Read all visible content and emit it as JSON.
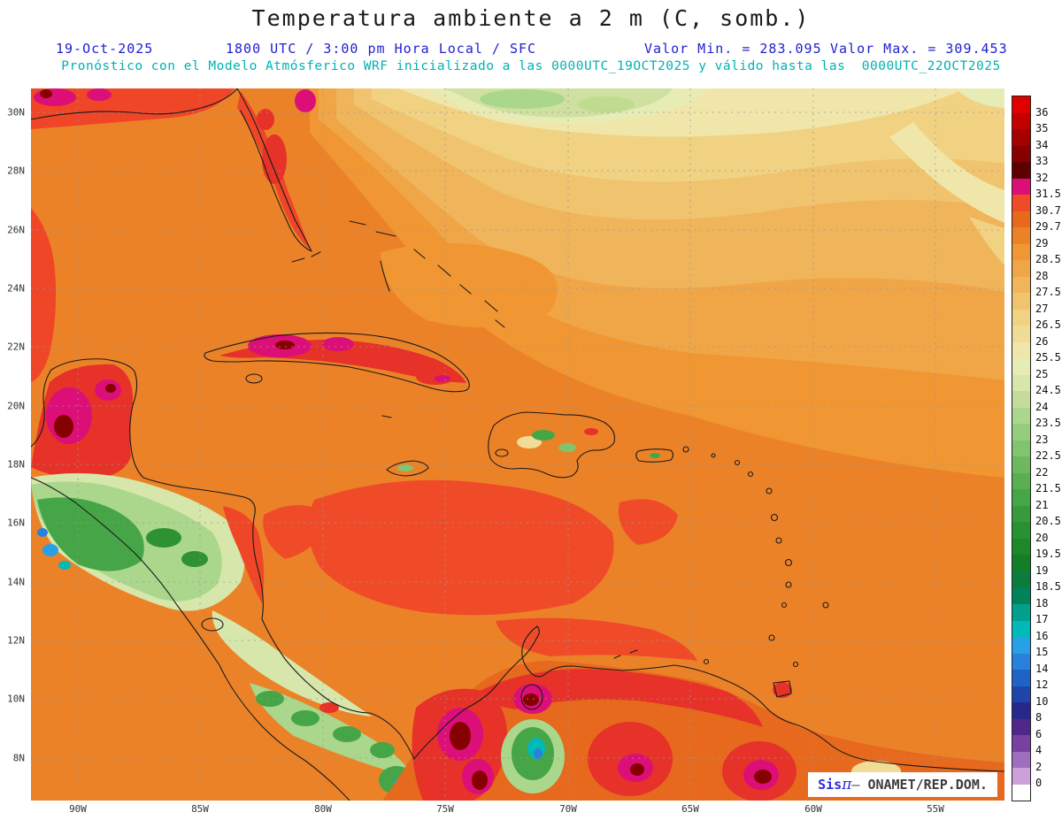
{
  "header": {
    "title": "Temperatura ambiente a 2 m (C, somb.)",
    "date": "19-Oct-2025",
    "run_line": "1800 UTC / 3:00 pm Hora Local / SFC",
    "min_label": "Valor Min. = 283.095",
    "max_label": "Valor Max. = 309.453",
    "forecast_line": "Pronóstico con el Modelo Atmósferico WRF inicializado a las 0000UTC_19OCT2025 y válido hasta las  0000UTC_22OCT2025"
  },
  "watermark": {
    "brand": "Sis",
    "pi": "π",
    "separator": "– ",
    "org": "ONAMET/REP.DOM."
  },
  "axes": {
    "lat_ticks": [
      "30N",
      "28N",
      "26N",
      "24N",
      "22N",
      "20N",
      "18N",
      "16N",
      "14N",
      "12N",
      "10N",
      "8N"
    ],
    "lon_ticks": [
      "90W",
      "85W",
      "80W",
      "75W",
      "70W",
      "65W",
      "60W",
      "55W"
    ]
  },
  "colorbar": {
    "tick_labels": [
      "36",
      "35",
      "34",
      "33",
      "32",
      "31.5",
      "30.7",
      "29.7",
      "29",
      "28.5",
      "28",
      "27.5",
      "27",
      "26.5",
      "26",
      "25.5",
      "25",
      "24.5",
      "24",
      "23.5",
      "23",
      "22.5",
      "22",
      "21.5",
      "21",
      "20.5",
      "20",
      "19.5",
      "19",
      "18.5",
      "18",
      "17",
      "16",
      "15",
      "14",
      "12",
      "10",
      "8",
      "6",
      "4",
      "2",
      "0"
    ],
    "cell_colors": [
      "#e00000",
      "#c30000",
      "#a50000",
      "#870000",
      "#5f0000",
      "#dc0f78",
      "#f04b28",
      "#e6691e",
      "#eb8228",
      "#f09632",
      "#f0a546",
      "#f0b45a",
      "#f0c36e",
      "#f0d282",
      "#f0dc96",
      "#f0e6aa",
      "#e6ecb4",
      "#d7e6aa",
      "#c3dc9b",
      "#aad78c",
      "#96cd7d",
      "#82c36e",
      "#6eb960",
      "#5aaf50",
      "#46a546",
      "#379b3c",
      "#289132",
      "#1e8728",
      "#147d28",
      "#0a7d3c",
      "#00825a",
      "#00a08c",
      "#00b9b9",
      "#28a0e6",
      "#2882dc",
      "#1e64c8",
      "#1e46aa",
      "#28288c",
      "#50288c",
      "#7841a0",
      "#a06ebe",
      "#cda0dc",
      "#ffffff"
    ]
  },
  "chart_data": {
    "type": "heatmap",
    "title": "Temperatura ambiente a 2 m (C, somb.)",
    "variable": "Temperatura ambiente a 2 m",
    "units": "C",
    "date": "19-Oct-2025",
    "valid_time": "1800 UTC / 3:00 pm Hora Local / SFC",
    "model": "WRF",
    "init": "0000UTC_19OCT2025",
    "valid_until": "0000UTC_22OCT2025",
    "value_min": 283.095,
    "value_max": 309.453,
    "x_ticks": [
      "90W",
      "85W",
      "80W",
      "75W",
      "70W",
      "65W",
      "60W",
      "55W"
    ],
    "y_ticks": [
      "8N",
      "10N",
      "12N",
      "14N",
      "16N",
      "18N",
      "20N",
      "22N",
      "24N",
      "26N",
      "28N",
      "30N"
    ],
    "levels": [
      0,
      2,
      4,
      6,
      8,
      10,
      12,
      14,
      15,
      16,
      17,
      18,
      18.5,
      19,
      19.5,
      20,
      20.5,
      21,
      21.5,
      22,
      22.5,
      23,
      23.5,
      24,
      24.5,
      25,
      25.5,
      26,
      26.5,
      27,
      27.5,
      28,
      28.5,
      29,
      29.7,
      30.7,
      31.5,
      32,
      33,
      34,
      35,
      36
    ],
    "palette_low_to_high": [
      "#ffffff",
      "#cda0dc",
      "#a06ebe",
      "#7841a0",
      "#50288c",
      "#28288c",
      "#1e46aa",
      "#1e64c8",
      "#2882dc",
      "#28a0e6",
      "#00b9b9",
      "#00a08c",
      "#00825a",
      "#0a7d3c",
      "#147d28",
      "#1e8728",
      "#289132",
      "#379b3c",
      "#46a546",
      "#5aaf50",
      "#6eb960",
      "#82c36e",
      "#96cd7d",
      "#aad78c",
      "#c3dc9b",
      "#d7e6aa",
      "#e6ecb4",
      "#f0e6aa",
      "#f0dc96",
      "#f0d282",
      "#f0c36e",
      "#f0b45a",
      "#f0a546",
      "#f09632",
      "#eb8228",
      "#e6691e",
      "#f04b28",
      "#dc0f78",
      "#5f0000",
      "#870000",
      "#a50000",
      "#c30000",
      "#e00000"
    ],
    "legend_position": "right",
    "grid": "dashed lat/lon graticule every 2 deg lat / 5 deg lon"
  }
}
